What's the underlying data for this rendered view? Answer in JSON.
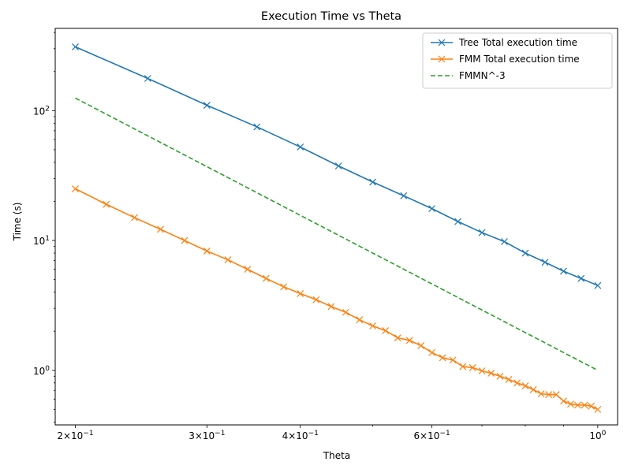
{
  "chart_data": {
    "type": "line",
    "title": "Execution Time vs Theta",
    "xlabel": "Theta",
    "ylabel": "Time (s)",
    "xscale": "log",
    "yscale": "log",
    "xlim": [
      0.188,
      1.063
    ],
    "ylim": [
      0.38,
      430
    ],
    "grid": false,
    "legend_position": "top-right",
    "x_ticks": [
      {
        "value": 0.2,
        "base": "2×10",
        "exp": "−1"
      },
      {
        "value": 0.3,
        "base": "3×10",
        "exp": "−1"
      },
      {
        "value": 0.4,
        "base": "4×10",
        "exp": "−1"
      },
      {
        "value": 0.6,
        "base": "6×10",
        "exp": "−1"
      },
      {
        "value": 1.0,
        "base": "10",
        "exp": "0"
      }
    ],
    "y_ticks": [
      {
        "value": 1,
        "base": "10",
        "exp": "0"
      },
      {
        "value": 10,
        "base": "10",
        "exp": "1"
      },
      {
        "value": 100,
        "base": "10",
        "exp": "2"
      }
    ],
    "series": [
      {
        "name": "Tree Total execution time",
        "color": "#1f77b4",
        "style": "solid",
        "marker": "x",
        "x": [
          0.2,
          0.25,
          0.3,
          0.35,
          0.4,
          0.45,
          0.5,
          0.55,
          0.6,
          0.65,
          0.7,
          0.75,
          0.8,
          0.85,
          0.9,
          0.95,
          1.0
        ],
        "y": [
          310,
          177,
          110,
          75,
          52.5,
          37.5,
          28.2,
          22.1,
          17.6,
          14.0,
          11.5,
          9.8,
          8.0,
          6.8,
          5.8,
          5.1,
          4.5
        ]
      },
      {
        "name": "FMM Total execution time",
        "color": "#ff7f0e",
        "style": "solid",
        "marker": "x",
        "x": [
          0.2,
          0.22,
          0.24,
          0.26,
          0.28,
          0.3,
          0.32,
          0.34,
          0.36,
          0.38,
          0.4,
          0.42,
          0.44,
          0.46,
          0.48,
          0.5,
          0.52,
          0.54,
          0.56,
          0.58,
          0.6,
          0.62,
          0.64,
          0.66,
          0.68,
          0.7,
          0.72,
          0.74,
          0.76,
          0.78,
          0.8,
          0.82,
          0.84,
          0.86,
          0.88,
          0.9,
          0.92,
          0.94,
          0.96,
          0.98,
          1.0
        ],
        "y": [
          25.0,
          19.0,
          15.0,
          12.2,
          10.0,
          8.3,
          7.1,
          6.0,
          5.1,
          4.4,
          3.9,
          3.5,
          3.1,
          2.8,
          2.45,
          2.2,
          2.02,
          1.78,
          1.7,
          1.55,
          1.37,
          1.25,
          1.2,
          1.07,
          1.05,
          0.99,
          0.95,
          0.9,
          0.85,
          0.8,
          0.76,
          0.71,
          0.66,
          0.65,
          0.65,
          0.58,
          0.55,
          0.54,
          0.54,
          0.53,
          0.5
        ]
      },
      {
        "name": "FMMN^-3",
        "color": "#2ca02c",
        "style": "dashed",
        "marker": "none",
        "x": [
          0.2,
          0.3,
          0.4,
          0.5,
          0.6,
          0.7,
          0.8,
          0.9,
          1.0
        ],
        "y": [
          125,
          37.04,
          15.625,
          8.0,
          4.63,
          2.915,
          1.953,
          1.372,
          1.0
        ]
      }
    ]
  }
}
